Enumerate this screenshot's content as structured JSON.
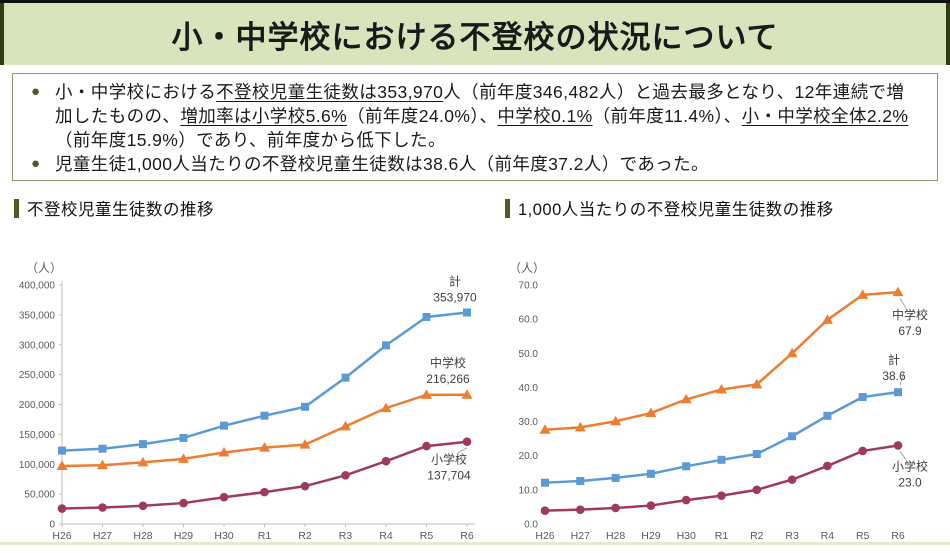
{
  "page_title": "小・中学校における不登校の状況について",
  "colors": {
    "band_bg": "#d7e4bc",
    "band_edge": "#2f3d15",
    "accent_green": "#4a5e23",
    "box_border": "#8b9a6d",
    "axis_line": "#bfbfbf",
    "tick_text": "#595959",
    "annotation_text": "#3f3f3f",
    "callout_line": "#a6a6a6",
    "series_total": "#5b9bd5",
    "series_junior_high": "#ed7d31",
    "series_elementary": "#9e3a60"
  },
  "summary": {
    "bullets": [
      {
        "segments": [
          {
            "t": "小・中学校における",
            "u": false
          },
          {
            "t": "不登校児童生徒数は353,970",
            "u": true
          },
          {
            "t": "人（前年度346,482人）と過去最多となり、12年連続で増加したものの、",
            "u": false
          },
          {
            "t": "増加率は小学校5.6%",
            "u": true
          },
          {
            "t": "（前年度24.0%）、",
            "u": false
          },
          {
            "t": "中学校0.1%",
            "u": true
          },
          {
            "t": "（前年度11.4%）、",
            "u": false
          },
          {
            "t": "小・中学校全体2.2%",
            "u": true
          },
          {
            "t": "（前年度15.9%）であり、前年度から低下した。",
            "u": false
          }
        ]
      },
      {
        "segments": [
          {
            "t": "児童生徒1,000人当たりの不登校児童生徒数は38.6人（前年度37.2人）であった。",
            "u": false
          }
        ]
      }
    ]
  },
  "chart_data": [
    {
      "type": "line",
      "title": "不登校児童生徒数の推移",
      "unit_label": "（人）",
      "categories": [
        "H26",
        "H27",
        "H28",
        "H29",
        "H30",
        "R1",
        "R2",
        "R3",
        "R4",
        "R5",
        "R6"
      ],
      "ylim": [
        0,
        400000
      ],
      "ytick_step": 50000,
      "ytick_format": "comma",
      "grid": false,
      "axes_visible": true,
      "legend": "end-of-line-labels",
      "series": [
        {
          "key": "total",
          "name": "計",
          "marker": "square",
          "color": "#5b9bd5",
          "values": [
            122897,
            125991,
            133683,
            144031,
            164528,
            181272,
            196127,
            244940,
            299048,
            346482,
            353970
          ],
          "end_label_value": "353,970",
          "label_dx": -12,
          "label_dy": -27,
          "callout": false
        },
        {
          "key": "junior-high",
          "name": "中学校",
          "marker": "triangle",
          "color": "#ed7d31",
          "values": [
            97033,
            98408,
            103235,
            108999,
            119687,
            127922,
            132777,
            163442,
            193936,
            216112,
            216266
          ],
          "end_label_value": "216,266",
          "label_dx": -19,
          "label_dy": -28,
          "callout": false
        },
        {
          "key": "elementary",
          "name": "小学校",
          "marker": "circle",
          "color": "#9e3a60",
          "values": [
            25864,
            27583,
            30448,
            35032,
            44841,
            53350,
            63350,
            81498,
            105112,
            130370,
            137704
          ],
          "end_label_value": "137,704",
          "label_dx": -18,
          "label_dy": 22,
          "callout": true
        }
      ]
    },
    {
      "type": "line",
      "title": "1,000人当たりの不登校児童生徒数の推移",
      "unit_label": "（人）",
      "categories": [
        "H26",
        "H27",
        "H28",
        "H29",
        "H30",
        "R1",
        "R2",
        "R3",
        "R4",
        "R5",
        "R6"
      ],
      "ylim": [
        0,
        70
      ],
      "ytick_step": 10,
      "ytick_format": "fixed1",
      "grid": false,
      "axes_visible": false,
      "legend": "end-of-line-labels",
      "series": [
        {
          "key": "junior-high",
          "name": "中学校",
          "marker": "triangle",
          "color": "#ed7d31",
          "values": [
            27.6,
            28.3,
            30.1,
            32.5,
            36.5,
            39.4,
            40.9,
            50.0,
            59.8,
            67.1,
            67.9
          ],
          "end_label_value": "67.9",
          "label_dx": 12,
          "label_dy": 27,
          "callout": true
        },
        {
          "key": "total",
          "name": "計",
          "marker": "square",
          "color": "#5b9bd5",
          "values": [
            12.1,
            12.6,
            13.5,
            14.7,
            16.9,
            18.8,
            20.5,
            25.7,
            31.7,
            37.2,
            38.6
          ],
          "end_label_value": "38.6",
          "label_dx": -4,
          "label_dy": -28,
          "callout": true
        },
        {
          "key": "elementary",
          "name": "小学校",
          "marker": "circle",
          "color": "#9e3a60",
          "values": [
            3.9,
            4.2,
            4.7,
            5.4,
            7.0,
            8.3,
            10.0,
            13.0,
            17.0,
            21.4,
            23.0
          ],
          "end_label_value": "23.0",
          "label_dx": 12,
          "label_dy": 25,
          "callout": true
        }
      ]
    }
  ]
}
